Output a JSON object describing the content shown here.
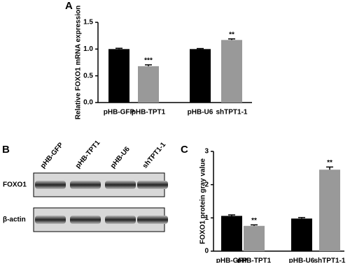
{
  "chart_data": [
    {
      "type": "bar",
      "panel": "A",
      "y_label": "Relative FOXO1 mRNA expression",
      "categories": [
        "pHB-GFP",
        "pHB-TPT1",
        "pHB-U6",
        "shTPT1-1"
      ],
      "values": [
        1.0,
        0.68,
        1.0,
        1.17
      ],
      "errors": [
        0.015,
        0.025,
        0.01,
        0.02
      ],
      "colors": [
        "#000000",
        "#999999",
        "#000000",
        "#999999"
      ],
      "significance": [
        null,
        "***",
        null,
        "**"
      ],
      "ylim": [
        0,
        1.5
      ],
      "yticks": [
        {
          "value": 0,
          "label": "0.0"
        },
        0.5,
        {
          "value": 1,
          "label": "1.0"
        },
        1.5
      ]
    },
    {
      "type": "bar",
      "panel": "C",
      "y_label": "FOXO1 protein gray value",
      "categories": [
        "pHB-GFP",
        "pHB-TPT1",
        "pHB-U6",
        "shTPT1-1"
      ],
      "values": [
        1.06,
        0.76,
        0.98,
        2.45
      ],
      "errors": [
        0.03,
        0.03,
        0.03,
        0.08
      ],
      "colors": [
        "#000000",
        "#999999",
        "#000000",
        "#999999"
      ],
      "significance": [
        null,
        "**",
        null,
        "**"
      ],
      "ylim": [
        0,
        3
      ],
      "yticks": [
        0,
        1,
        2,
        3
      ]
    }
  ],
  "blot": {
    "panel": "B",
    "lanes": [
      "pHB-GFP",
      "pHB-TPT1",
      "pHB-U6",
      "shTPT1-1"
    ],
    "rows": [
      "FOXO1",
      "β-actin"
    ]
  }
}
